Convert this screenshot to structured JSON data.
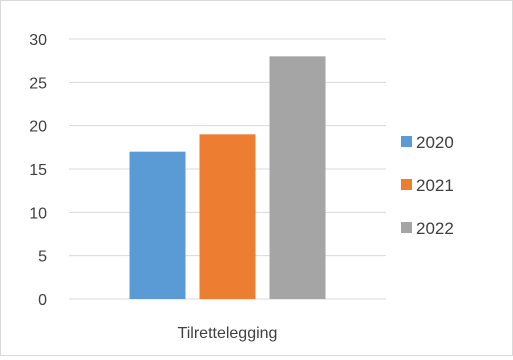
{
  "chart_data": {
    "type": "bar",
    "categories": [
      "Tilrettelegging"
    ],
    "series": [
      {
        "name": "2020",
        "values": [
          17
        ],
        "color": "#5b9bd5"
      },
      {
        "name": "2021",
        "values": [
          19
        ],
        "color": "#ed7d31"
      },
      {
        "name": "2022",
        "values": [
          28
        ],
        "color": "#a5a5a5"
      }
    ],
    "ylim": [
      0,
      30
    ],
    "yticks": [
      0,
      5,
      10,
      15,
      20,
      25,
      30
    ],
    "grid": true,
    "legend": "right",
    "title": "",
    "xlabel": "",
    "ylabel": ""
  }
}
